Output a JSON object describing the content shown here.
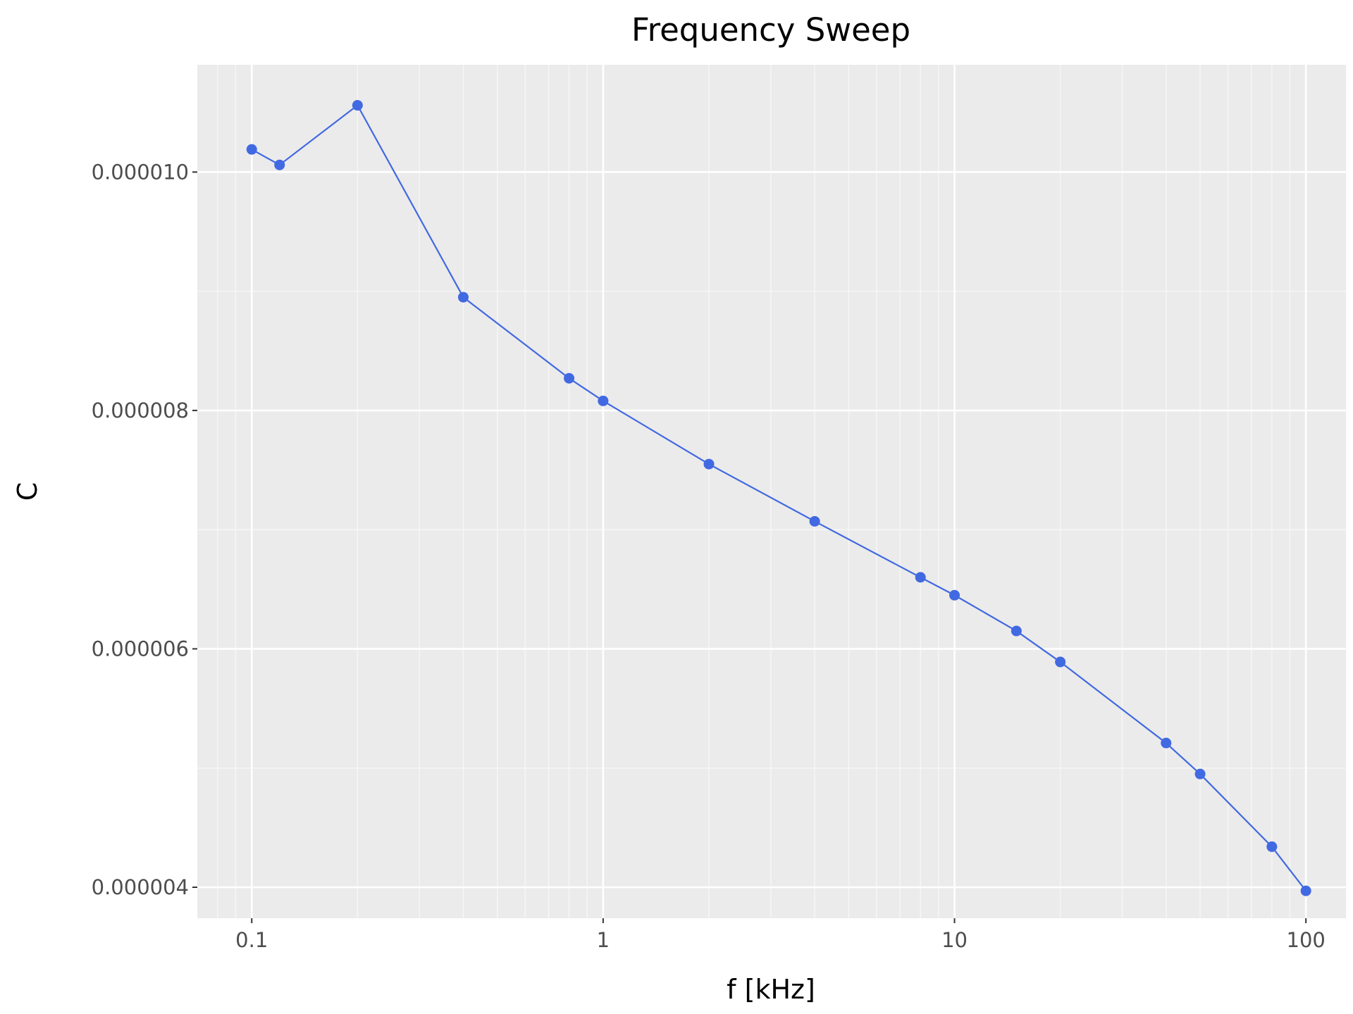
{
  "chart_data": {
    "type": "line",
    "title": "Frequency Sweep",
    "xlabel": "f [kHz]",
    "ylabel": "C",
    "x_scale": "log10",
    "xlim": [
      0.07,
      130
    ],
    "ylim": [
      3.74e-06,
      1.09e-05
    ],
    "x_ticks": [
      0.1,
      1,
      10,
      100
    ],
    "x_tick_labels": [
      "0.1",
      "1",
      "10",
      "100"
    ],
    "y_ticks": [
      4e-06,
      6e-06,
      8e-06,
      1e-05
    ],
    "y_tick_labels": [
      "0.000004",
      "0.000006",
      "0.000008",
      "0.000010"
    ],
    "grid": true,
    "series": [
      {
        "color": "#4169e1",
        "x": [
          0.1,
          0.12,
          0.2,
          0.4,
          0.8,
          1,
          2,
          4,
          8,
          10,
          15,
          20,
          40,
          50,
          80,
          100
        ],
        "values": [
          1.019e-05,
          1.006e-05,
          1.056e-05,
          8.95e-06,
          8.27e-06,
          8.08e-06,
          7.55e-06,
          7.07e-06,
          6.6e-06,
          6.45e-06,
          6.15e-06,
          5.89e-06,
          5.21e-06,
          4.95e-06,
          4.34e-06,
          3.97e-06
        ]
      }
    ],
    "colors": {
      "panel": "#ebebeb",
      "grid_major": "#ffffff",
      "grid_minor": "#f7f7f7",
      "tick_text": "#4d4d4d",
      "tick_mark": "#333333"
    }
  }
}
